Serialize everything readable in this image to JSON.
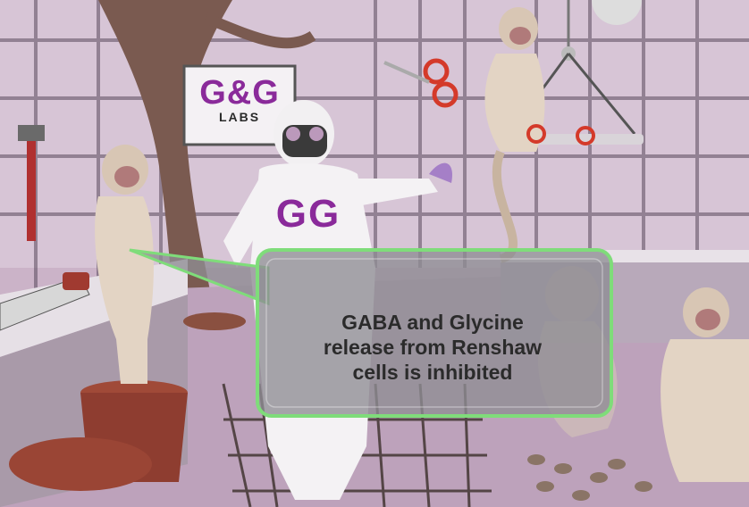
{
  "sign": {
    "main": "G&G",
    "sub": "LABS"
  },
  "suit": {
    "text": "GG"
  },
  "callout": {
    "text": "GABA and Glycine\nrelease from Renshaw\ncells is inhibited"
  },
  "colors": {
    "background": "#cbb3c8",
    "callout_border": "#7fdc7a",
    "callout_fill": "#8e8d93",
    "logo_purple": "#8a2a9a"
  },
  "icons": [
    "pipe-wrench-icon",
    "saw-icon",
    "scissors-icon",
    "gas-mask-icon"
  ]
}
